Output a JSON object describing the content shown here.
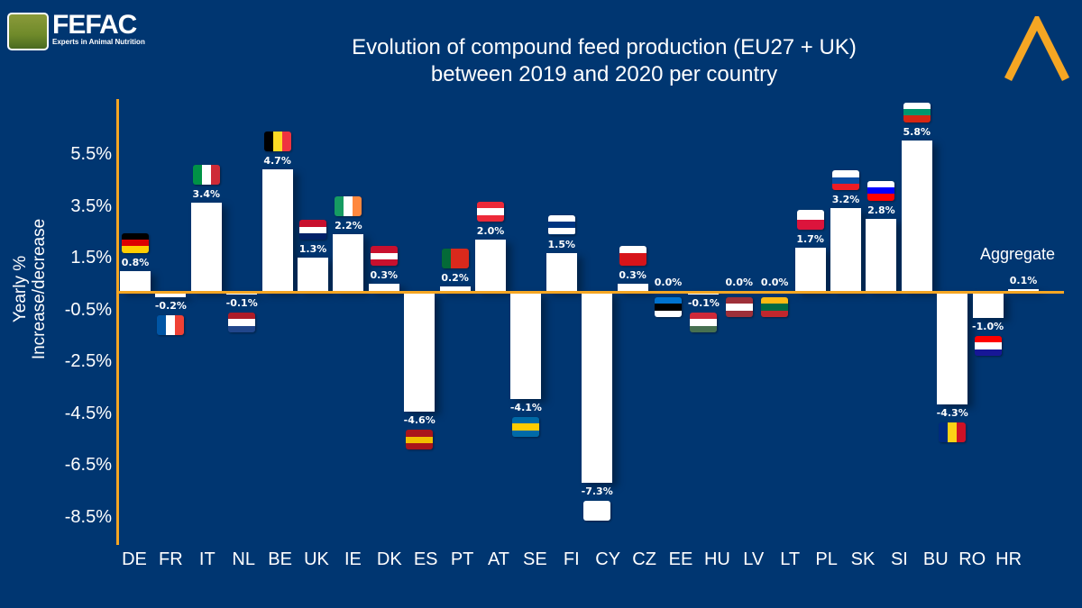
{
  "logo": {
    "name": "FEFAC",
    "tagline": "Experts in Animal Nutrition"
  },
  "chart_data": {
    "type": "bar",
    "title": "Evolution of compound feed production (EU27 + UK) between 2019 and 2020 per country",
    "title_lines": [
      "Evolution of compound feed production (EU27 + UK)",
      "between 2019 and 2020 per country"
    ],
    "ylabel_lines": [
      "Yearly %",
      "Increase/decrease"
    ],
    "yticks": [
      "5.5%",
      "3.5%",
      "1.5%",
      "-0.5%",
      "-2.5%",
      "-4.5%",
      "-6.5%",
      "-8.5%"
    ],
    "ytick_values": [
      5.5,
      3.5,
      1.5,
      -0.5,
      -2.5,
      -4.5,
      -6.5,
      -8.5
    ],
    "ylim": [
      -8.5,
      6.5
    ],
    "categories": [
      "DE",
      "FR",
      "IT",
      "NL",
      "BE",
      "UK",
      "IE",
      "DK",
      "ES",
      "PT",
      "AT",
      "SE",
      "FI",
      "CY",
      "CZ",
      "EE",
      "HU",
      "LV",
      "LT",
      "PL",
      "SK",
      "SI",
      "BU",
      "RO",
      "HR"
    ],
    "values": [
      0.8,
      -0.2,
      3.4,
      -0.1,
      4.7,
      1.3,
      2.2,
      0.3,
      -4.6,
      0.2,
      2.0,
      -4.1,
      1.5,
      -7.3,
      0.3,
      0.0,
      -0.1,
      0.0,
      0.0,
      1.7,
      3.2,
      2.8,
      5.8,
      -4.3,
      -1.0
    ],
    "labels": [
      "0.8%",
      "-0.2%",
      "3.4%",
      "-0.1%",
      "4.7%",
      "1.3%",
      "2.2%",
      "0.3%",
      "-4.6%",
      "0.2%",
      "2.0%",
      "-4.1%",
      "1.5%",
      "-7.3%",
      "0.3%",
      "0.0%",
      "-0.1%",
      "0.0%",
      "0.0%",
      "1.7%",
      "3.2%",
      "2.8%",
      "5.8%",
      "-4.3%",
      "-1.0%"
    ],
    "aggregate": {
      "label": "Aggregate",
      "value": 0.1,
      "value_label": "0.1%"
    },
    "grid": false,
    "colors": {
      "background": "#003671",
      "bars": "#ffffff",
      "axis": "#f5a623"
    },
    "flags": [
      {
        "dir": "h",
        "c": [
          "#000000",
          "#dd0000",
          "#ffce00"
        ]
      },
      {
        "dir": "v",
        "c": [
          "#0055a4",
          "#ffffff",
          "#ef4135"
        ]
      },
      {
        "dir": "v",
        "c": [
          "#009246",
          "#ffffff",
          "#ce2b37"
        ]
      },
      {
        "dir": "h",
        "c": [
          "#ae1c28",
          "#ffffff",
          "#21468b"
        ]
      },
      {
        "dir": "v",
        "c": [
          "#000000",
          "#fdda24",
          "#ef3340"
        ]
      },
      {
        "dir": "h",
        "c": [
          "#c8102e",
          "#ffffff",
          "#012169"
        ]
      },
      {
        "dir": "v",
        "c": [
          "#169b62",
          "#ffffff",
          "#ff883e"
        ]
      },
      {
        "dir": "h",
        "c": [
          "#c8102e",
          "#ffffff",
          "#c8102e"
        ]
      },
      {
        "dir": "h",
        "c": [
          "#aa151b",
          "#f1bf00",
          "#aa151b"
        ]
      },
      {
        "dir": "v",
        "c": [
          "#046a38",
          "#da291c",
          "#da291c"
        ]
      },
      {
        "dir": "h",
        "c": [
          "#ed2939",
          "#ffffff",
          "#ed2939"
        ]
      },
      {
        "dir": "h",
        "c": [
          "#006aa7",
          "#fecc00",
          "#006aa7"
        ]
      },
      {
        "dir": "h",
        "c": [
          "#ffffff",
          "#003580",
          "#ffffff"
        ]
      },
      {
        "dir": "h",
        "c": [
          "#ffffff",
          "#ffffff",
          "#ffffff"
        ]
      },
      {
        "dir": "h",
        "c": [
          "#ffffff",
          "#d7141a",
          "#d7141a"
        ]
      },
      {
        "dir": "h",
        "c": [
          "#0072ce",
          "#000000",
          "#ffffff"
        ]
      },
      {
        "dir": "h",
        "c": [
          "#ce2939",
          "#ffffff",
          "#477050"
        ]
      },
      {
        "dir": "h",
        "c": [
          "#9e3039",
          "#ffffff",
          "#9e3039"
        ]
      },
      {
        "dir": "h",
        "c": [
          "#fdb913",
          "#006a44",
          "#c1272d"
        ]
      },
      {
        "dir": "h",
        "c": [
          "#ffffff",
          "#dc143c"
        ]
      },
      {
        "dir": "h",
        "c": [
          "#ffffff",
          "#0b4ea2",
          "#ee1c25"
        ]
      },
      {
        "dir": "h",
        "c": [
          "#ffffff",
          "#0000ff",
          "#ff0000"
        ]
      },
      {
        "dir": "h",
        "c": [
          "#ffffff",
          "#00966e",
          "#d62612"
        ]
      },
      {
        "dir": "v",
        "c": [
          "#002b7f",
          "#fcd116",
          "#ce1126"
        ]
      },
      {
        "dir": "h",
        "c": [
          "#ff0000",
          "#ffffff",
          "#171796"
        ]
      }
    ]
  }
}
